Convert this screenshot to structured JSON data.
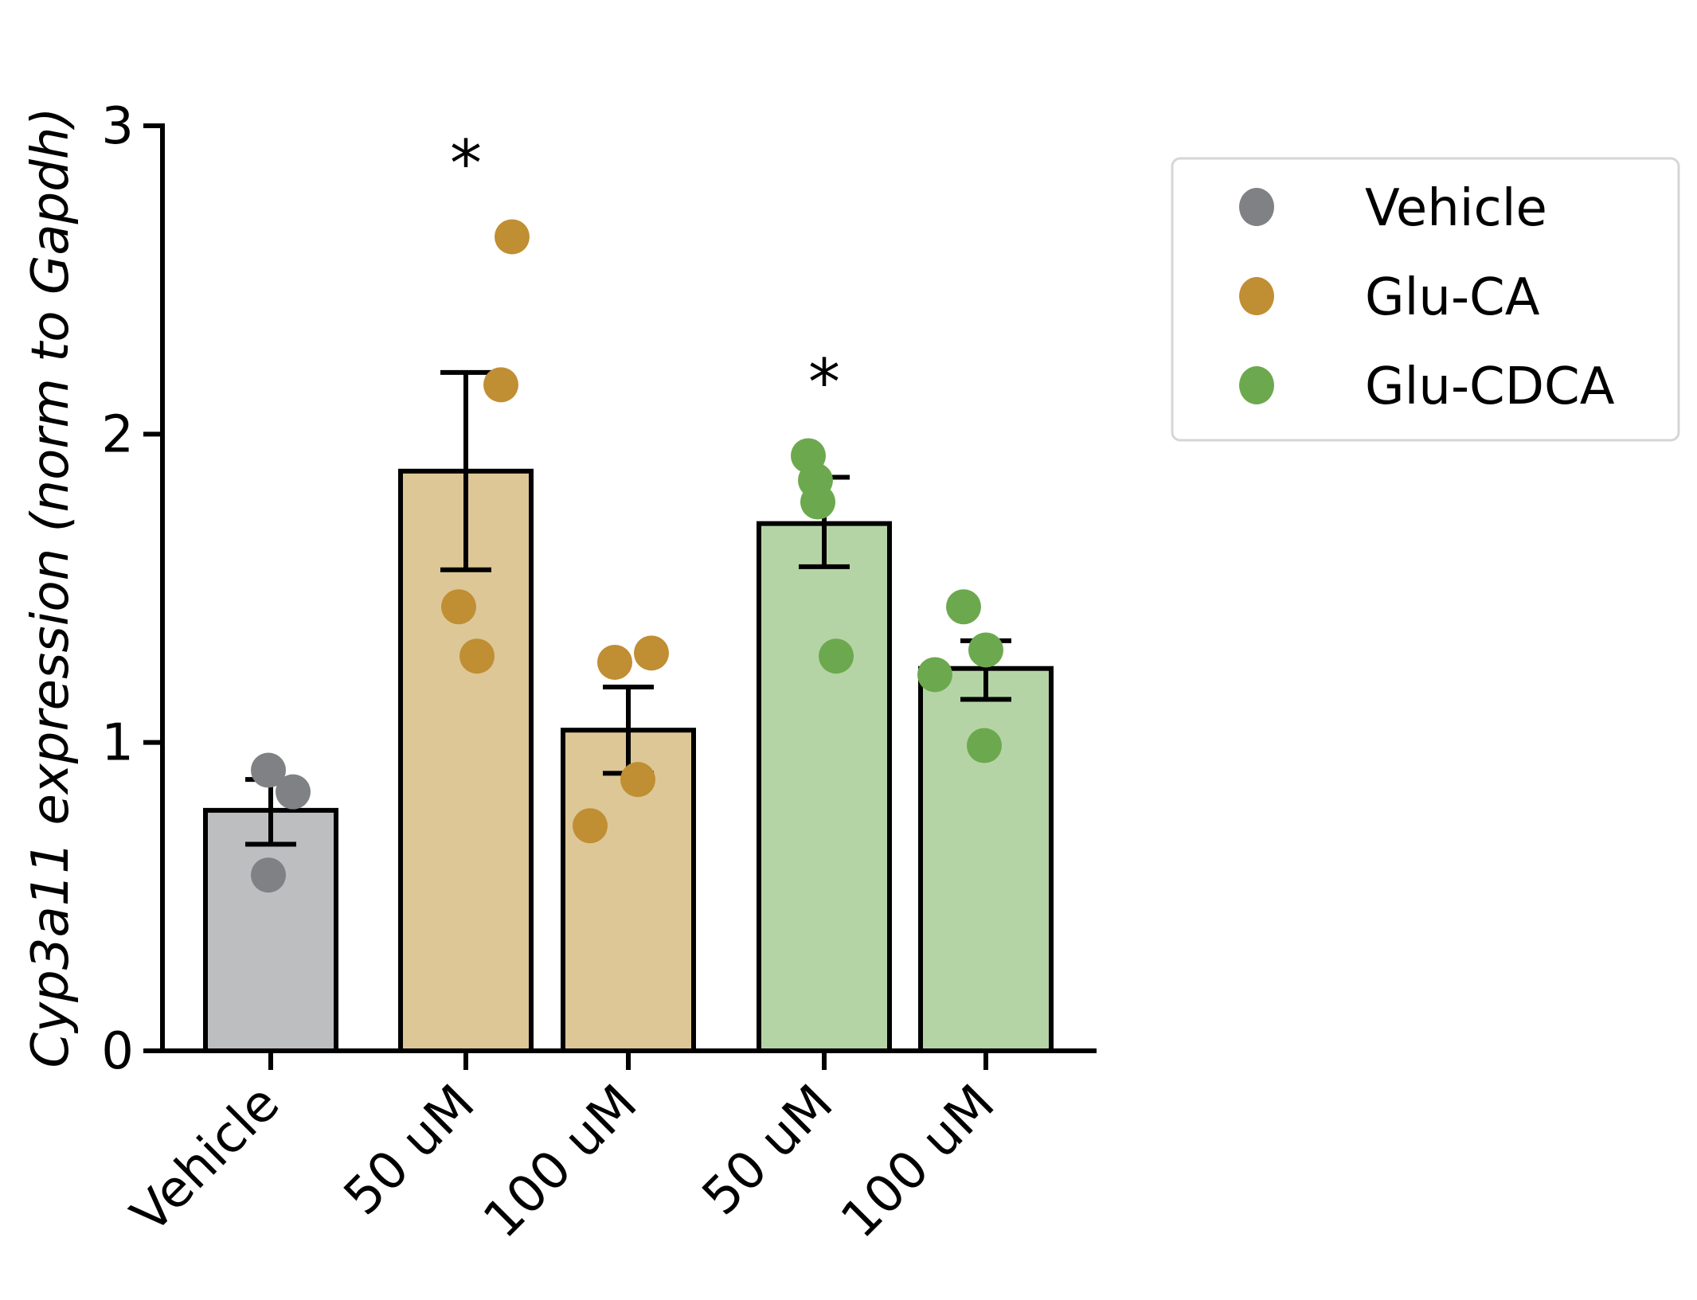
{
  "chart_data": {
    "type": "bar",
    "title": "",
    "xlabel": "",
    "ylabel": "Cyp3a11 expression (norm to Gapdh)",
    "ylim": [
      0,
      3
    ],
    "yticks": [
      "0",
      "1",
      "2",
      "3"
    ],
    "grid": false,
    "legend_position": "right",
    "legend": [
      {
        "label": "Vehicle",
        "color": "#808184"
      },
      {
        "label": "Glu-CA",
        "color": "#c08e33"
      },
      {
        "label": "Glu-CDCA",
        "color": "#6ca94e"
      }
    ],
    "categories": [
      "Vehicle",
      "50 uM",
      "100 uM",
      "50 uM",
      "100 uM"
    ],
    "bars": [
      {
        "label": "Vehicle",
        "group": "Vehicle",
        "mean": 0.78,
        "err_low": 0.67,
        "err_high": 0.88,
        "bar_color": "#bdbec0",
        "point_color": "#808184",
        "points": [
          0.91,
          0.84,
          0.57
        ],
        "significance": ""
      },
      {
        "label": "50 uM",
        "group": "Glu-CA",
        "mean": 1.88,
        "err_low": 1.56,
        "err_high": 2.2,
        "bar_color": "#ddc797",
        "point_color": "#c08e33",
        "points": [
          2.64,
          2.16,
          1.44,
          1.28
        ],
        "significance": "*",
        "significance_y": 2.93
      },
      {
        "label": "100 uM",
        "group": "Glu-CA",
        "mean": 1.04,
        "err_low": 0.9,
        "err_high": 1.18,
        "bar_color": "#ddc797",
        "point_color": "#c08e33",
        "points": [
          1.26,
          1.29,
          0.88,
          0.73
        ],
        "significance": ""
      },
      {
        "label": "50 uM",
        "group": "Glu-CDCA",
        "mean": 1.71,
        "err_low": 1.57,
        "err_high": 1.86,
        "bar_color": "#b5d4a6",
        "point_color": "#6ca94e",
        "points": [
          1.93,
          1.85,
          1.78,
          1.28
        ],
        "significance": "*",
        "significance_y": 2.22
      },
      {
        "label": "100 uM",
        "group": "Glu-CDCA",
        "mean": 1.24,
        "err_low": 1.14,
        "err_high": 1.33,
        "bar_color": "#b5d4a6",
        "point_color": "#6ca94e",
        "points": [
          1.44,
          1.3,
          1.22,
          0.99
        ],
        "significance": ""
      }
    ]
  }
}
